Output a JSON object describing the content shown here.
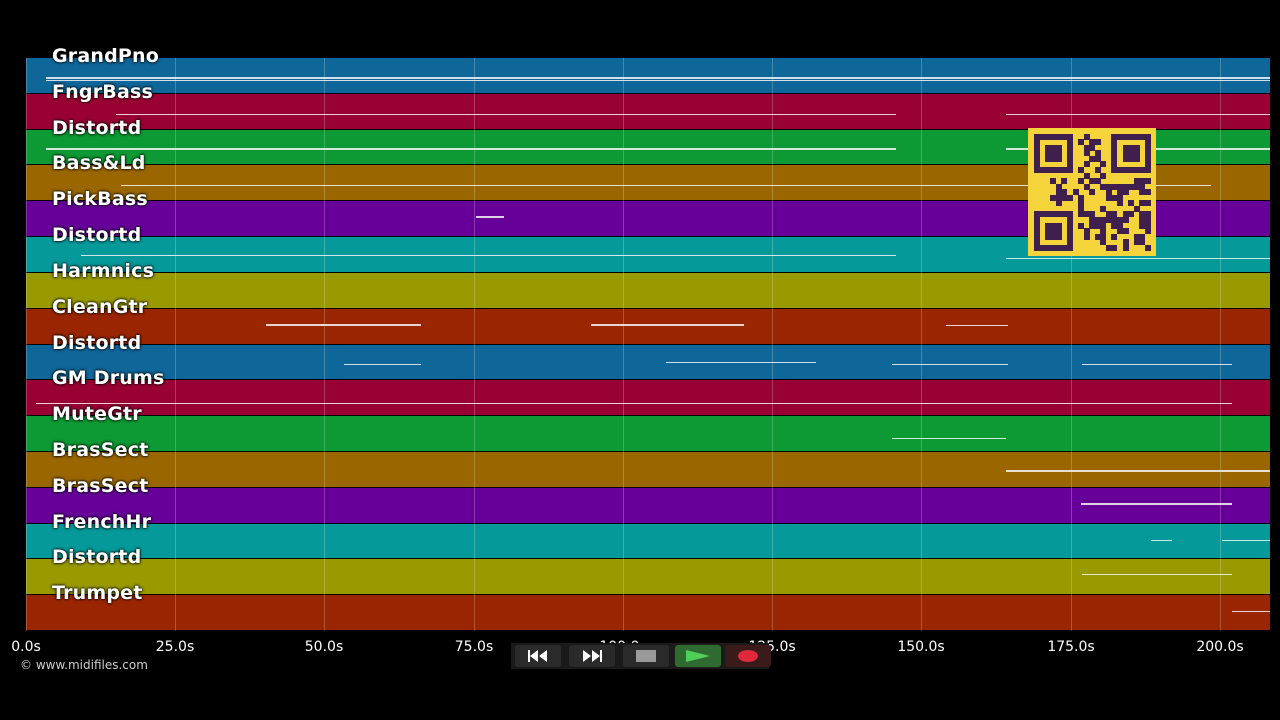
{
  "tracks": [
    {
      "name": "GrandPno",
      "color": "#0f6699"
    },
    {
      "name": "FngrBass",
      "color": "#990033"
    },
    {
      "name": "Distortd",
      "color": "#0d9933"
    },
    {
      "name": "Bass&Ld",
      "color": "#996600"
    },
    {
      "name": "PickBass",
      "color": "#660099"
    },
    {
      "name": "Distortd",
      "color": "#069999"
    },
    {
      "name": "Harmnics",
      "color": "#999900"
    },
    {
      "name": "CleanGtr",
      "color": "#992600"
    },
    {
      "name": "Distortd",
      "color": "#0f6699"
    },
    {
      "name": "GM Drums",
      "color": "#990033"
    },
    {
      "name": "MuteGtr",
      "color": "#0d9933"
    },
    {
      "name": "BrasSect",
      "color": "#996600"
    },
    {
      "name": "BrasSect",
      "color": "#660099"
    },
    {
      "name": "FrenchHr",
      "color": "#069999"
    },
    {
      "name": "Distortd",
      "color": "#999900"
    },
    {
      "name": "Trumpet",
      "color": "#992600"
    }
  ],
  "time_axis": {
    "ticks": [
      "0.0s",
      "25.0s",
      "50.0s",
      "75.0s",
      "100.0s",
      "125.0s",
      "150.0s",
      "175.0s",
      "200.0s"
    ]
  },
  "copyright": "© www.midifiles.com",
  "transport": {
    "rewind": "rewind-icon",
    "fast_forward": "fast-forward-icon",
    "stop": "stop-icon",
    "play": "play-icon",
    "record": "record-icon"
  },
  "qr_code": "qr-code-icon"
}
